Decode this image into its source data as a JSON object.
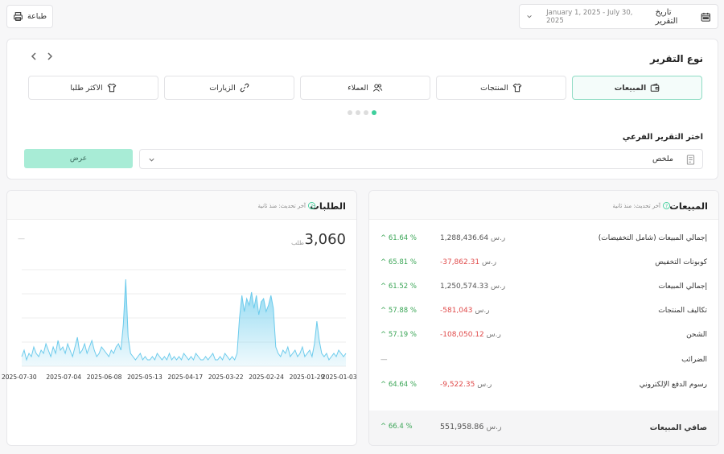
{
  "toolbar": {
    "print_label": "طباعة",
    "report_date_label": "تاريخ التقرير",
    "date_range": "January 1, 2025 - July 30, 2025"
  },
  "report_type": {
    "title": "نوع التقرير",
    "tabs": [
      {
        "label": "المبيعات",
        "icon": "wallet-icon",
        "active": true
      },
      {
        "label": "المنتجات",
        "icon": "shirt-icon",
        "active": false
      },
      {
        "label": "العملاء",
        "icon": "users-icon",
        "active": false
      },
      {
        "label": "الزيارات",
        "icon": "link-icon",
        "active": false
      },
      {
        "label": "الاكثر طلبا",
        "icon": "shirt-icon",
        "active": false
      }
    ],
    "pagination_dots": 4,
    "active_dot": 0
  },
  "sub_report": {
    "label": "اختر التقرير الفرعي",
    "selected": "ملخص",
    "submit_label": "عرض"
  },
  "sales": {
    "title": "المبيعات",
    "updated": "آخر تحديث: منذ ثانية",
    "currency": "ر.س",
    "rows": [
      {
        "name": "إجمالي المبيعات (شامل التخفيضات)",
        "value": "1,288,436.64",
        "negative": false,
        "pct": "61.64 %"
      },
      {
        "name": "كوبونات التخفيض",
        "value": "-37,862.31",
        "negative": true,
        "pct": "65.81 %"
      },
      {
        "name": "إجمالي المبيعات",
        "value": "1,250,574.33",
        "negative": false,
        "pct": "61.52 %"
      },
      {
        "name": "تكاليف المنتجات",
        "value": "-581,043",
        "negative": true,
        "pct": "57.88 %"
      },
      {
        "name": "الشحن",
        "value": "-108,050.12",
        "negative": true,
        "pct": "57.19 %"
      },
      {
        "name": "الضرائب",
        "value": "—",
        "negative": false,
        "pct": "—"
      },
      {
        "name": "رسوم الدفع الإلكتروني",
        "value": "-9,522.35",
        "negative": true,
        "pct": "64.64 %"
      }
    ],
    "net": {
      "name": "صافي المبيعات",
      "value": "551,958.86",
      "pct": "66.4 %"
    }
  },
  "orders": {
    "title": "الطلبات",
    "updated": "آخر تحديث: منذ ثانية",
    "total": "3,060",
    "unit": "طلب",
    "dash": "—"
  },
  "chart_data": {
    "type": "area",
    "color": "#7fd3ef",
    "x_ticks": [
      "2025-07-30",
      "2025-07-04",
      "2025-06-08",
      "2025-05-13",
      "2025-04-17",
      "2025-03-22",
      "2025-02-24",
      "2025-01-29",
      "2025-01-03"
    ],
    "values": [
      3,
      5,
      2,
      4,
      3,
      6,
      4,
      3,
      5,
      4,
      7,
      5,
      3,
      6,
      4,
      8,
      5,
      6,
      4,
      7,
      5,
      3,
      6,
      9,
      4,
      5,
      7,
      4,
      6,
      8,
      5,
      3,
      4,
      6,
      5,
      4,
      3,
      5,
      4,
      6,
      7,
      5,
      13,
      27,
      9,
      4,
      3,
      2,
      3,
      4,
      2,
      3,
      2,
      2,
      3,
      2,
      4,
      3,
      2,
      3,
      2,
      4,
      2,
      3,
      2,
      3,
      2,
      4,
      3,
      2,
      3,
      2,
      4,
      3,
      2,
      2,
      3,
      2,
      3,
      4,
      2,
      2,
      3,
      2,
      4,
      3,
      2,
      3,
      2,
      4,
      15,
      22,
      17,
      21,
      19,
      23,
      18,
      22,
      16,
      20,
      21,
      17,
      19,
      22,
      18,
      6,
      4,
      3,
      5,
      4,
      6,
      3,
      4,
      5,
      3,
      4,
      6,
      3,
      4,
      5,
      3,
      7,
      14,
      8,
      4,
      3,
      4,
      2,
      3,
      4,
      3,
      5,
      4,
      3,
      4
    ],
    "ylim": [
      0,
      30
    ],
    "grid": true
  }
}
